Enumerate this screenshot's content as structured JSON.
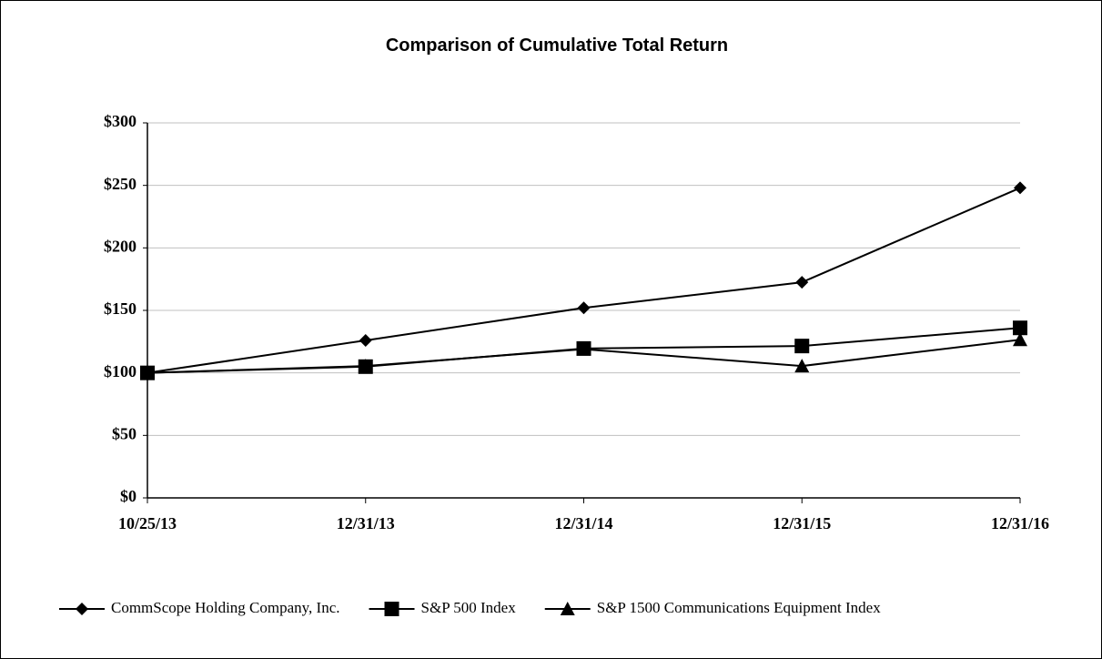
{
  "chart_data": {
    "type": "line",
    "title": "Comparison of Cumulative Total Return",
    "categories": [
      "10/25/13",
      "12/31/13",
      "12/31/14",
      "12/31/15",
      "12/31/16"
    ],
    "series": [
      {
        "name": "CommScope Holding Company, Inc.",
        "color": "#000000",
        "marker": "diamond",
        "values": [
          100,
          126,
          152,
          172.5,
          248
        ]
      },
      {
        "name": "S&P 500 Index",
        "color": "#000000",
        "marker": "square",
        "values": [
          100,
          105,
          119.5,
          121.5,
          136
        ]
      },
      {
        "name": "S&P 1500 Communications Equipment Index",
        "color": "#000000",
        "marker": "triangle",
        "values": [
          100,
          105.5,
          119,
          105.5,
          126.5
        ]
      }
    ],
    "ylim": [
      0,
      300
    ],
    "yticks": [
      {
        "value": 0,
        "label": "$0"
      },
      {
        "value": 50,
        "label": "$50"
      },
      {
        "value": 100,
        "label": "$100"
      },
      {
        "value": 150,
        "label": "$150"
      },
      {
        "value": 200,
        "label": "$200"
      },
      {
        "value": 250,
        "label": "$250"
      },
      {
        "value": 300,
        "label": "$300"
      }
    ],
    "grid": true,
    "legend": "bottom"
  }
}
